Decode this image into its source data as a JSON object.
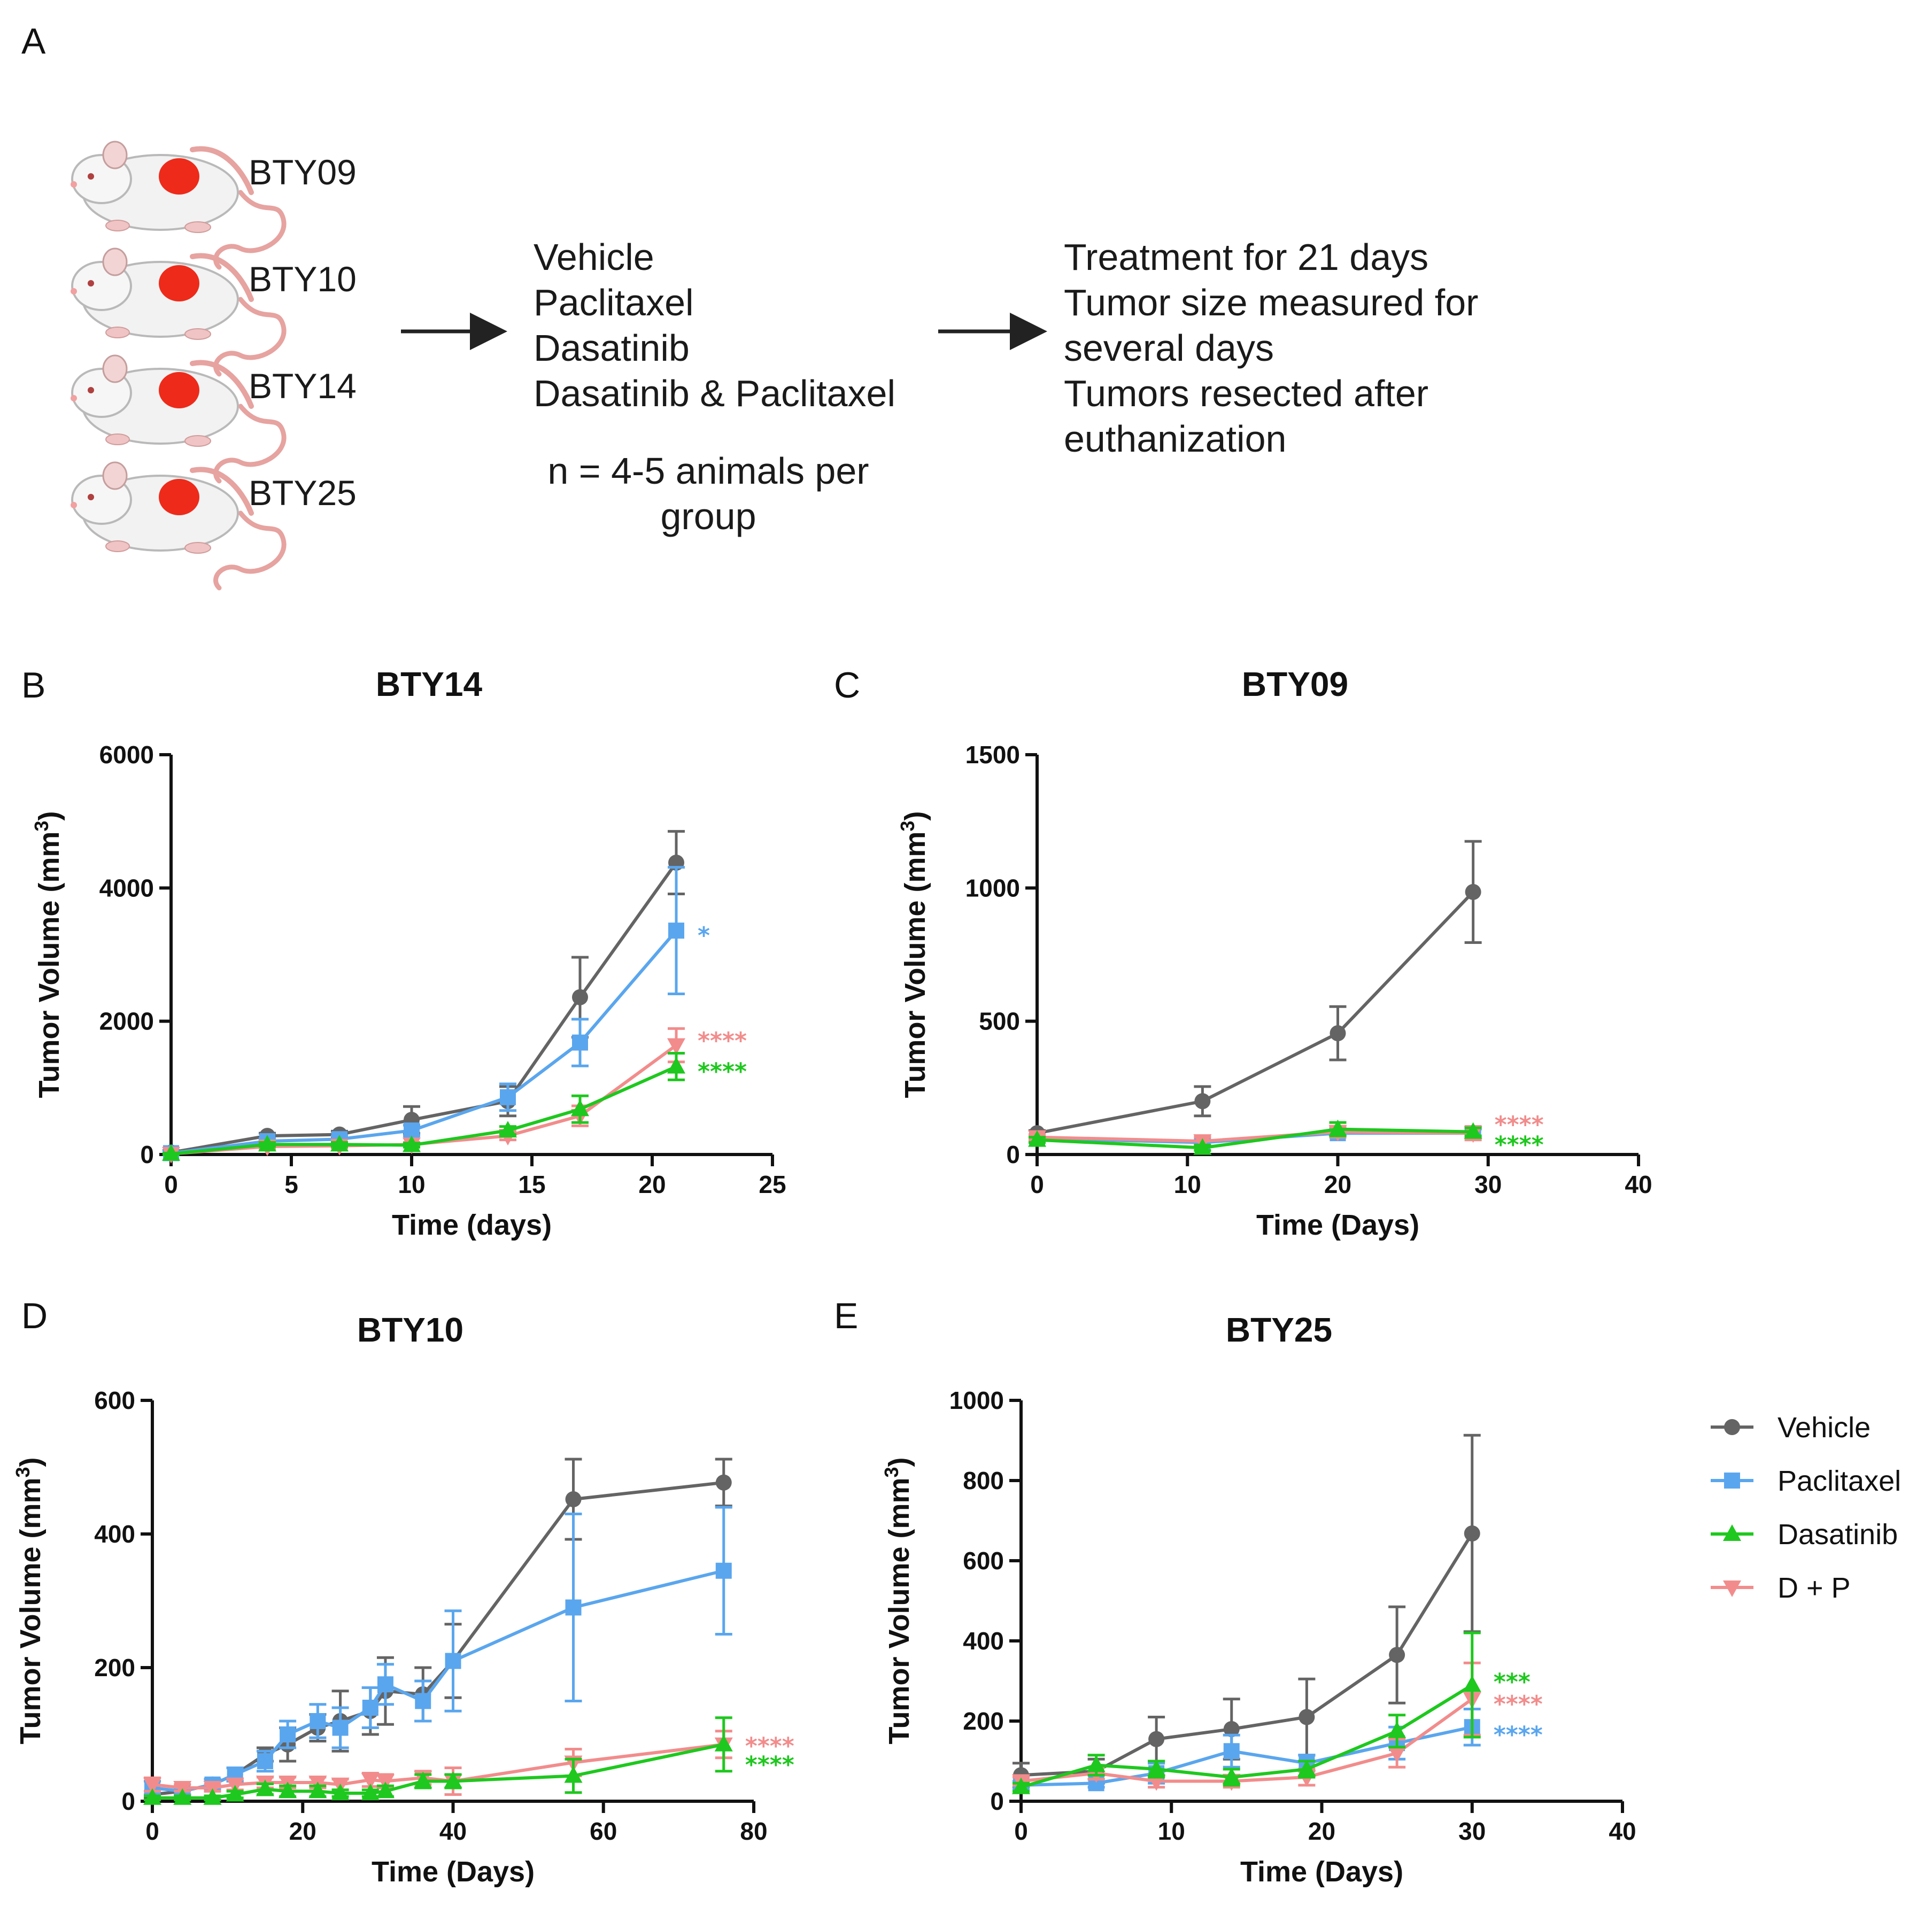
{
  "panels": {
    "A": "A",
    "B": "B",
    "C": "C",
    "D": "D",
    "E": "E"
  },
  "schematic": {
    "models": [
      "BTY09",
      "BTY10",
      "BTY14",
      "BTY25"
    ],
    "treatments": [
      "Vehicle",
      "Paclitaxel",
      "Dasatinib",
      "Dasatinib & Paclitaxel"
    ],
    "n_line1": "n = 4-5 animals per",
    "n_line2": "group",
    "procedure": [
      "Treatment for 21 days",
      "Tumor size measured for",
      "several days",
      "Tumors resected after",
      "euthanization"
    ]
  },
  "colors": {
    "vehicle": "#646464",
    "paclitaxel": "#5aa6ee",
    "dasatinib": "#1ec81e",
    "dp": "#f28c8c",
    "mouse_tumor": "#ee2a1a",
    "mouse_tail": "#e6a3a0"
  },
  "legend": {
    "vehicle": "Vehicle",
    "paclitaxel": "Paclitaxel",
    "dasatinib": "Dasatinib",
    "dp": "D + P"
  },
  "chart_data": [
    {
      "type": "line",
      "title": "BTY14",
      "xlabel": "Time (days)",
      "ylabel": "Tumor Volume (mm",
      "ylabel_sup": "3",
      "ylabel_close": ")",
      "xlim": [
        0,
        25
      ],
      "ylim": [
        0,
        6000
      ],
      "xticks": [
        0,
        5,
        10,
        15,
        20,
        25
      ],
      "yticks": [
        0,
        2000,
        4000,
        6000
      ],
      "series": [
        {
          "name": "Vehicle",
          "key": "vehicle",
          "x": [
            0,
            4,
            7,
            10,
            14,
            17,
            21
          ],
          "y": [
            30,
            280,
            300,
            520,
            800,
            2360,
            4380
          ],
          "err": [
            30,
            40,
            50,
            200,
            220,
            600,
            470
          ]
        },
        {
          "name": "Paclitaxel",
          "key": "paclitaxel",
          "x": [
            0,
            4,
            7,
            10,
            14,
            17,
            21
          ],
          "y": [
            20,
            200,
            230,
            360,
            860,
            1680,
            3360
          ],
          "err": [
            20,
            40,
            50,
            80,
            200,
            350,
            950
          ]
        },
        {
          "name": "Dasatinib",
          "key": "dasatinib",
          "x": [
            0,
            4,
            7,
            10,
            14,
            17,
            21
          ],
          "y": [
            10,
            150,
            150,
            140,
            360,
            680,
            1320
          ],
          "err": [
            10,
            30,
            30,
            30,
            60,
            200,
            200
          ]
        },
        {
          "name": "D + P",
          "key": "dp",
          "x": [
            0,
            4,
            7,
            10,
            14,
            17,
            21
          ],
          "y": [
            10,
            120,
            130,
            150,
            280,
            580,
            1640
          ],
          "err": [
            10,
            30,
            30,
            30,
            60,
            150,
            250
          ]
        }
      ],
      "annotations": [
        {
          "text": "*",
          "key": "paclitaxel",
          "y": 3360
        },
        {
          "text": "****",
          "key": "dp",
          "y": 1780
        },
        {
          "text": "****",
          "key": "dasatinib",
          "y": 1320
        }
      ]
    },
    {
      "type": "line",
      "title": "BTY09",
      "xlabel": "Time (Days)",
      "ylabel": "Tumor Volume (mm",
      "ylabel_sup": "3",
      "ylabel_close": ")",
      "xlim": [
        0,
        40
      ],
      "ylim": [
        0,
        1500
      ],
      "xticks": [
        0,
        10,
        20,
        30,
        40
      ],
      "yticks": [
        0,
        500,
        1000,
        1500
      ],
      "series": [
        {
          "name": "Vehicle",
          "key": "vehicle",
          "x": [
            0,
            11,
            20,
            29
          ],
          "y": [
            80,
            200,
            455,
            985
          ],
          "err": [
            10,
            55,
            100,
            190
          ]
        },
        {
          "name": "Paclitaxel",
          "key": "paclitaxel",
          "x": [
            0,
            11,
            20,
            29
          ],
          "y": [
            60,
            45,
            80,
            80
          ],
          "err": [
            10,
            10,
            15,
            15
          ]
        },
        {
          "name": "Dasatinib",
          "key": "dasatinib",
          "x": [
            0,
            11,
            20,
            29
          ],
          "y": [
            55,
            25,
            95,
            85
          ],
          "err": [
            10,
            10,
            25,
            15
          ]
        },
        {
          "name": "D + P",
          "key": "dp",
          "x": [
            0,
            11,
            20,
            29
          ],
          "y": [
            65,
            50,
            85,
            80
          ],
          "err": [
            10,
            15,
            20,
            25
          ]
        }
      ],
      "annotations": [
        {
          "text": "****",
          "key": "dp",
          "y": 130
        },
        {
          "text": "****",
          "key": "dasatinib",
          "y": 55
        }
      ]
    },
    {
      "type": "line",
      "title": "BTY10",
      "xlabel": "Time (Days)",
      "ylabel": "Tumor Volume (mm",
      "ylabel_sup": "3",
      "ylabel_close": ")",
      "xlim": [
        0,
        80
      ],
      "ylim": [
        0,
        600
      ],
      "xticks": [
        0,
        20,
        40,
        60,
        80
      ],
      "yticks": [
        0,
        200,
        400,
        600
      ],
      "series": [
        {
          "name": "Vehicle",
          "key": "vehicle",
          "x": [
            0,
            4,
            8,
            11,
            15,
            18,
            22,
            25,
            29,
            31,
            36,
            40,
            56,
            76
          ],
          "y": [
            10,
            15,
            25,
            40,
            70,
            85,
            110,
            120,
            135,
            165,
            160,
            210,
            452,
            477
          ],
          "err": [
            5,
            5,
            8,
            10,
            10,
            25,
            20,
            45,
            35,
            50,
            40,
            55,
            60,
            35
          ]
        },
        {
          "name": "Paclitaxel",
          "key": "paclitaxel",
          "x": [
            0,
            4,
            8,
            11,
            15,
            18,
            22,
            25,
            29,
            31,
            36,
            40,
            56,
            76
          ],
          "y": [
            20,
            15,
            25,
            40,
            60,
            100,
            120,
            110,
            140,
            175,
            150,
            210,
            290,
            345
          ],
          "err": [
            10,
            5,
            8,
            10,
            15,
            20,
            25,
            30,
            30,
            30,
            30,
            75,
            140,
            95
          ]
        },
        {
          "name": "Dasatinib",
          "key": "dasatinib",
          "x": [
            0,
            4,
            8,
            11,
            15,
            18,
            22,
            25,
            29,
            31,
            36,
            40,
            56,
            76
          ],
          "y": [
            5,
            5,
            5,
            10,
            18,
            15,
            15,
            12,
            12,
            15,
            30,
            30,
            38,
            85
          ],
          "err": [
            3,
            3,
            3,
            5,
            8,
            8,
            8,
            5,
            5,
            8,
            10,
            10,
            25,
            40
          ]
        },
        {
          "name": "D + P",
          "key": "dp",
          "x": [
            0,
            4,
            8,
            11,
            15,
            18,
            22,
            25,
            29,
            31,
            36,
            40,
            56,
            76
          ],
          "y": [
            25,
            20,
            20,
            25,
            28,
            28,
            28,
            25,
            32,
            30,
            35,
            30,
            58,
            85
          ],
          "err": [
            10,
            5,
            5,
            8,
            8,
            8,
            8,
            8,
            10,
            10,
            10,
            20,
            20,
            20
          ]
        }
      ],
      "annotations": [
        {
          "text": "****",
          "key": "dp",
          "y": 90
        },
        {
          "text": "****",
          "key": "dasatinib",
          "y": 62
        }
      ]
    },
    {
      "type": "line",
      "title": "BTY25",
      "xlabel": "Time (Days)",
      "ylabel": "Tumor Volume (mm",
      "ylabel_sup": "3",
      "ylabel_close": ")",
      "xlim": [
        0,
        40
      ],
      "ylim": [
        0,
        1000
      ],
      "xticks": [
        0,
        10,
        20,
        30,
        40
      ],
      "yticks": [
        0,
        200,
        400,
        600,
        800,
        1000
      ],
      "series": [
        {
          "name": "Vehicle",
          "key": "vehicle",
          "x": [
            0,
            5,
            9,
            14,
            19,
            25,
            30
          ],
          "y": [
            65,
            75,
            155,
            180,
            210,
            365,
            668
          ],
          "err": [
            30,
            30,
            55,
            75,
            95,
            120,
            245
          ]
        },
        {
          "name": "Paclitaxel",
          "key": "paclitaxel",
          "x": [
            0,
            5,
            9,
            14,
            19,
            25,
            30
          ],
          "y": [
            40,
            45,
            70,
            125,
            95,
            145,
            185
          ],
          "err": [
            10,
            10,
            25,
            40,
            20,
            40,
            45
          ]
        },
        {
          "name": "Dasatinib",
          "key": "dasatinib",
          "x": [
            0,
            5,
            9,
            14,
            19,
            25,
            30
          ],
          "y": [
            35,
            90,
            80,
            60,
            80,
            175,
            290
          ],
          "err": [
            10,
            25,
            20,
            20,
            20,
            40,
            130
          ]
        },
        {
          "name": "D + P",
          "key": "dp",
          "x": [
            0,
            5,
            9,
            14,
            19,
            25,
            30
          ],
          "y": [
            50,
            70,
            50,
            50,
            60,
            120,
            255
          ],
          "err": [
            10,
            15,
            15,
            15,
            20,
            35,
            90
          ]
        }
      ],
      "annotations": [
        {
          "text": "***",
          "key": "dasatinib",
          "y": 310
        },
        {
          "text": "****",
          "key": "dp",
          "y": 255
        },
        {
          "text": "****",
          "key": "paclitaxel",
          "y": 178
        }
      ]
    }
  ]
}
